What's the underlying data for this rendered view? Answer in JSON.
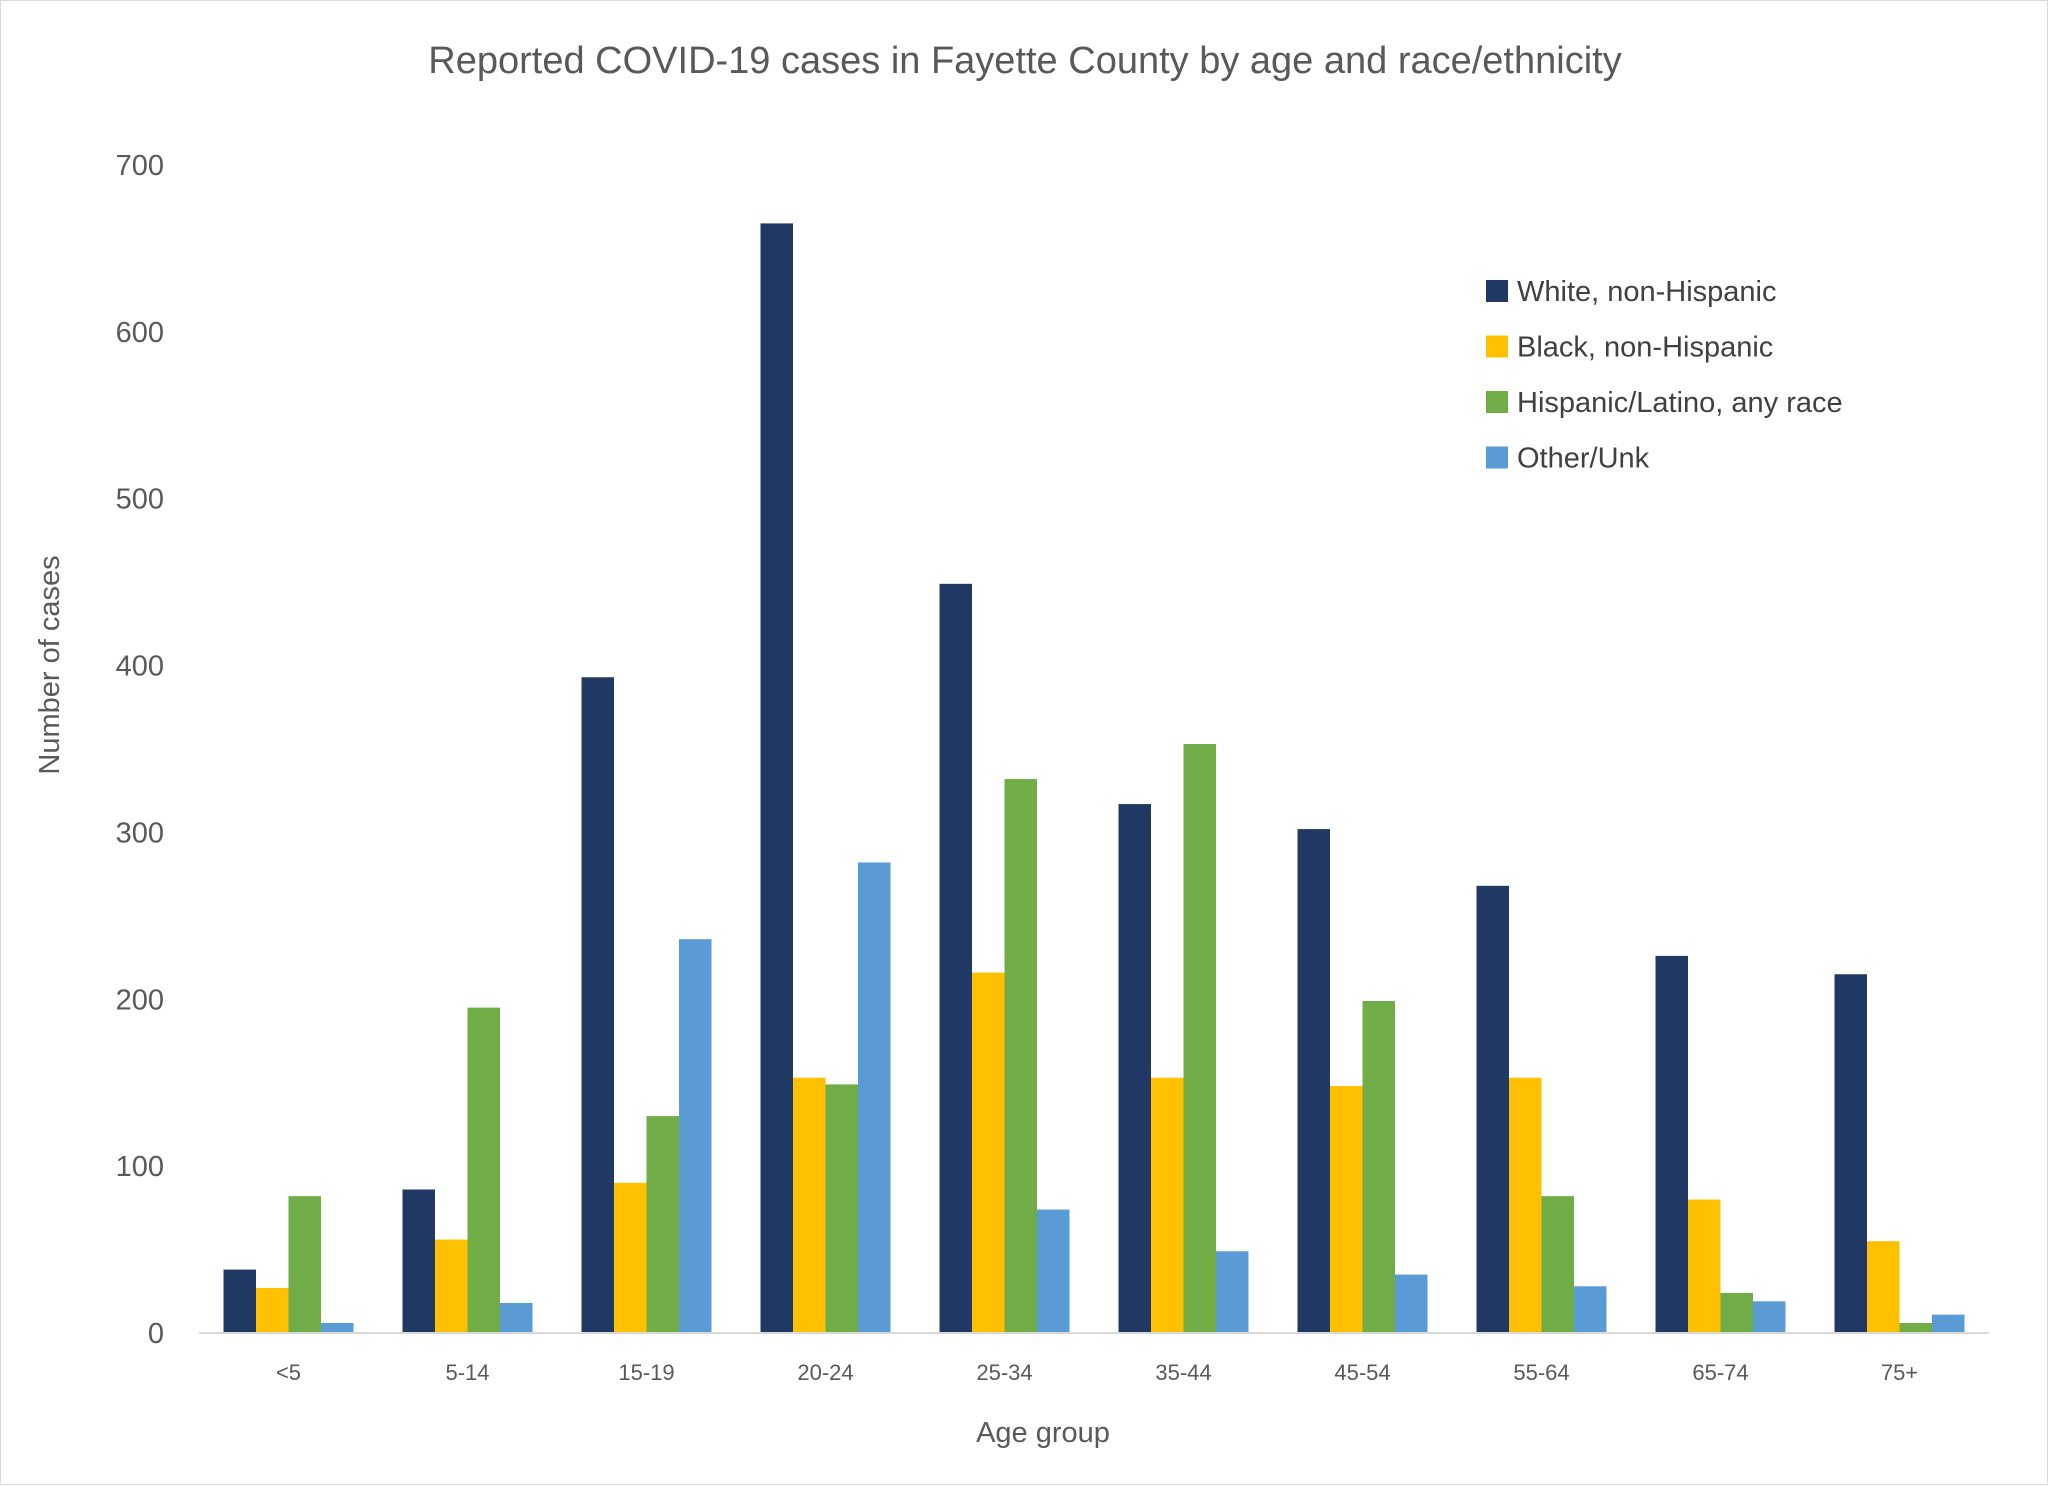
{
  "chart_data": {
    "type": "bar",
    "title": "Reported COVID-19 cases in Fayette County by age and race/ethnicity",
    "xlabel": "Age group",
    "ylabel": "Number of cases",
    "ylim": [
      0,
      700
    ],
    "yticks": [
      0,
      100,
      200,
      300,
      400,
      500,
      600,
      700
    ],
    "grid": false,
    "legend_position": "top-right",
    "categories": [
      "<5",
      "5-14",
      "15-19",
      "20-24",
      "25-34",
      "35-44",
      "45-54",
      "55-64",
      "65-74",
      "75+"
    ],
    "series": [
      {
        "name": "White, non-Hispanic",
        "color": "#1f3864",
        "values": [
          38,
          86,
          393,
          665,
          449,
          317,
          302,
          268,
          226,
          215
        ]
      },
      {
        "name": "Black, non-Hispanic",
        "color": "#ffc000",
        "values": [
          27,
          56,
          90,
          153,
          216,
          153,
          148,
          153,
          80,
          55
        ]
      },
      {
        "name": "Hispanic/Latino, any race",
        "color": "#70ad47",
        "values": [
          82,
          195,
          130,
          149,
          332,
          353,
          199,
          82,
          24,
          6
        ]
      },
      {
        "name": "Other/Unk",
        "color": "#5b9bd5",
        "values": [
          6,
          18,
          236,
          282,
          74,
          49,
          35,
          28,
          19,
          11
        ]
      }
    ]
  }
}
